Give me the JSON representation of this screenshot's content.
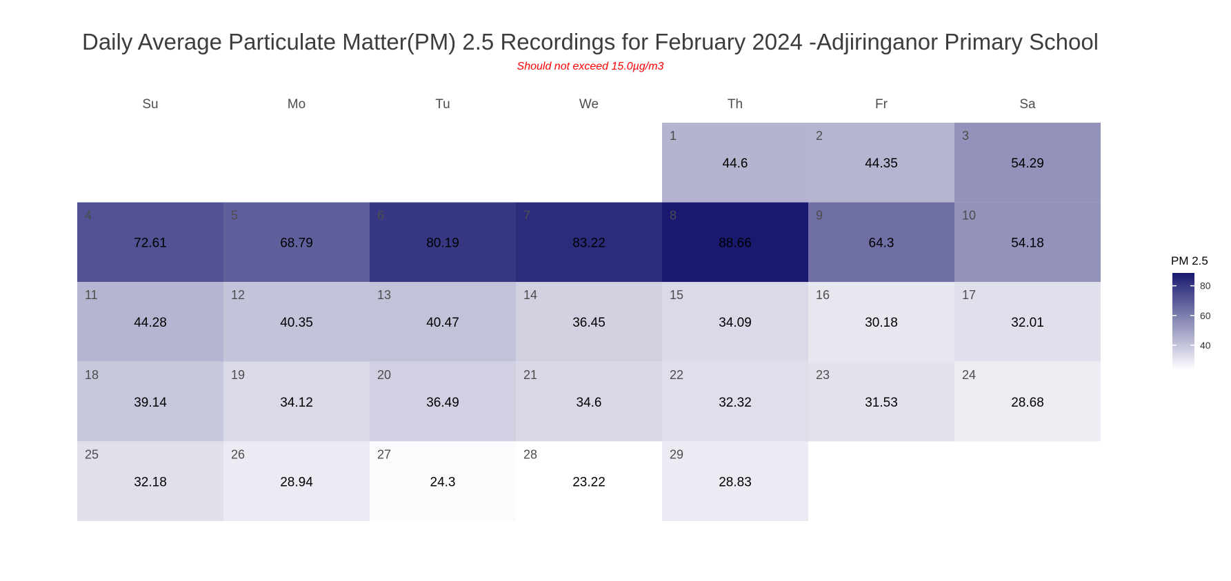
{
  "chart_data": {
    "type": "heatmap",
    "title": "Daily Average Particulate Matter(PM) 2.5 Recordings for February 2024 -Adjiringanor Primary School",
    "subtitle": "Should not exceed 15.0µg/m3",
    "weekdays": [
      "Su",
      "Mo",
      "Tu",
      "We",
      "Th",
      "Fr",
      "Sa"
    ],
    "first_weekday_index": 4,
    "days": [
      {
        "day": 1,
        "value": 44.6
      },
      {
        "day": 2,
        "value": 44.35
      },
      {
        "day": 3,
        "value": 54.29
      },
      {
        "day": 4,
        "value": 72.61
      },
      {
        "day": 5,
        "value": 68.79
      },
      {
        "day": 6,
        "value": 80.19
      },
      {
        "day": 7,
        "value": 83.22
      },
      {
        "day": 8,
        "value": 88.66
      },
      {
        "day": 9,
        "value": 64.3
      },
      {
        "day": 10,
        "value": 54.18
      },
      {
        "day": 11,
        "value": 44.28
      },
      {
        "day": 12,
        "value": 40.35
      },
      {
        "day": 13,
        "value": 40.47
      },
      {
        "day": 14,
        "value": 36.45
      },
      {
        "day": 15,
        "value": 34.09
      },
      {
        "day": 16,
        "value": 30.18
      },
      {
        "day": 17,
        "value": 32.01
      },
      {
        "day": 18,
        "value": 39.14
      },
      {
        "day": 19,
        "value": 34.12
      },
      {
        "day": 20,
        "value": 36.49
      },
      {
        "day": 21,
        "value": 34.6
      },
      {
        "day": 22,
        "value": 32.32
      },
      {
        "day": 23,
        "value": 31.53
      },
      {
        "day": 24,
        "value": 28.68
      },
      {
        "day": 25,
        "value": 32.18
      },
      {
        "day": 26,
        "value": 28.94
      },
      {
        "day": 27,
        "value": 24.3
      },
      {
        "day": 28,
        "value": 23.22
      },
      {
        "day": 29,
        "value": 28.83
      }
    ],
    "legend": {
      "title": "PM 2.5",
      "ticks": [
        "80",
        "60",
        "40"
      ],
      "tick_values": [
        80,
        60,
        40
      ],
      "range": [
        23.22,
        88.66
      ],
      "placement": "right"
    },
    "colors": {
      "low": "#ffffff",
      "high": "#191970",
      "subtitle": "#ff0000",
      "title": "#3d3d3d",
      "day_number": "#4d4d4d",
      "value_text": "#000000"
    }
  }
}
